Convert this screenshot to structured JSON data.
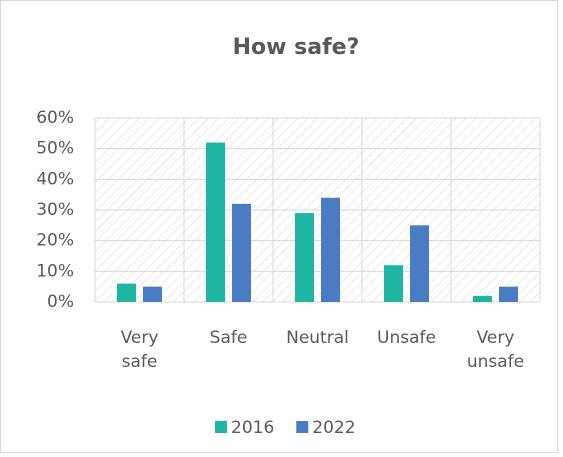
{
  "chart_data": {
    "type": "bar",
    "title": "How safe?",
    "categories": [
      "Very safe",
      "Safe",
      "Neutral",
      "Unsafe",
      "Very unsafe"
    ],
    "series": [
      {
        "name": "2016",
        "color": "#1fb5a3",
        "values": [
          6,
          52,
          29,
          12,
          2
        ]
      },
      {
        "name": "2022",
        "color": "#4a7cc4",
        "values": [
          5,
          32,
          34,
          25,
          5
        ]
      }
    ],
    "ylim": [
      0,
      60
    ],
    "yticks": [
      {
        "value": 0,
        "label": "0%"
      },
      {
        "value": 10,
        "label": "10%"
      },
      {
        "value": 20,
        "label": "20%"
      },
      {
        "value": 30,
        "label": "30%"
      },
      {
        "value": 40,
        "label": "40%"
      },
      {
        "value": 50,
        "label": "50%"
      },
      {
        "value": 60,
        "label": "60%"
      }
    ],
    "grid": true,
    "legend": "bottom"
  }
}
